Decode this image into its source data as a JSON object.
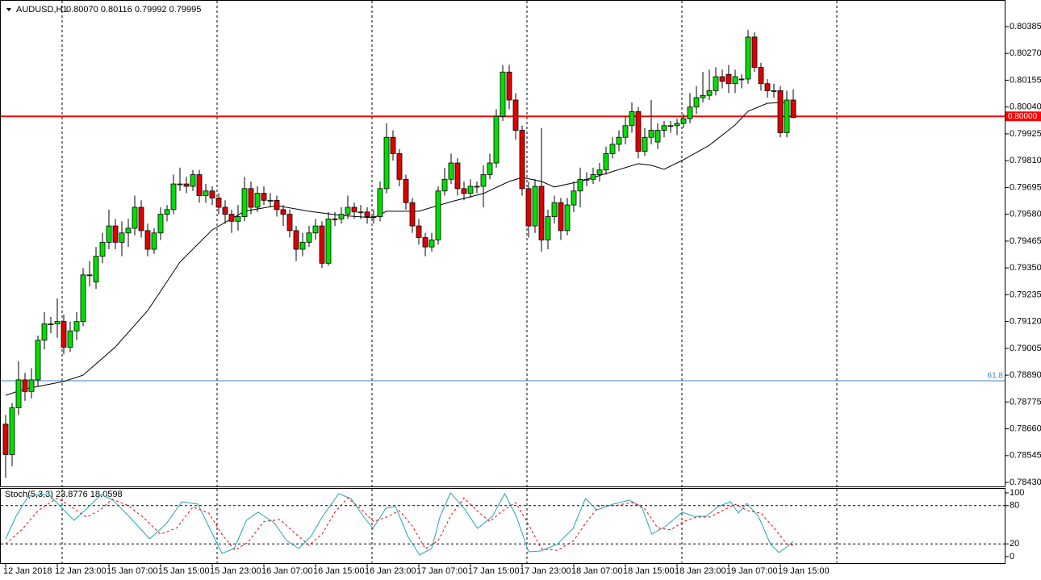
{
  "chart_data": [
    {
      "type": "candlestick",
      "title": "AUDUSD,H1",
      "subtitle": "0.80070 0.80116 0.79992 0.79995",
      "up_color": "#00e000",
      "down_color": "#e00000",
      "candles": [
        [
          0.7868,
          0.7872,
          0.7845,
          0.7855
        ],
        [
          0.7855,
          0.7877,
          0.785,
          0.7875
        ],
        [
          0.7875,
          0.7895,
          0.7872,
          0.7887
        ],
        [
          0.7887,
          0.789,
          0.7878,
          0.7882
        ],
        [
          0.7882,
          0.7892,
          0.7879,
          0.7887
        ],
        [
          0.7887,
          0.7906,
          0.7884,
          0.7904
        ],
        [
          0.7904,
          0.7916,
          0.79,
          0.7911
        ],
        [
          0.7911,
          0.7914,
          0.7907,
          0.7911
        ],
        [
          0.7911,
          0.7922,
          0.7905,
          0.7912
        ],
        [
          0.7912,
          0.7915,
          0.7898,
          0.7901
        ],
        [
          0.7901,
          0.7912,
          0.7899,
          0.7908
        ],
        [
          0.7908,
          0.7916,
          0.7904,
          0.7912
        ],
        [
          0.7912,
          0.7935,
          0.791,
          0.7932
        ],
        [
          0.7932,
          0.7938,
          0.7927,
          0.7932
        ],
        [
          0.7929,
          0.7944,
          0.7926,
          0.794
        ],
        [
          0.794,
          0.795,
          0.7937,
          0.7946
        ],
        [
          0.7946,
          0.796,
          0.7943,
          0.7953
        ],
        [
          0.7953,
          0.7956,
          0.7943,
          0.7946
        ],
        [
          0.7946,
          0.7955,
          0.794,
          0.795
        ],
        [
          0.795,
          0.7956,
          0.7944,
          0.7952
        ],
        [
          0.7952,
          0.7966,
          0.7949,
          0.7961
        ],
        [
          0.7961,
          0.7964,
          0.7948,
          0.7951
        ],
        [
          0.7951,
          0.7954,
          0.794,
          0.7943
        ],
        [
          0.7943,
          0.7952,
          0.7941,
          0.795
        ],
        [
          0.795,
          0.7961,
          0.7947,
          0.7958
        ],
        [
          0.7958,
          0.7962,
          0.7955,
          0.796
        ],
        [
          0.796,
          0.7975,
          0.7958,
          0.7971
        ],
        [
          0.7971,
          0.7978,
          0.7968,
          0.7971
        ],
        [
          0.7971,
          0.7974,
          0.7967,
          0.797
        ],
        [
          0.797,
          0.7977,
          0.7968,
          0.7975
        ],
        [
          0.7975,
          0.7977,
          0.7963,
          0.7966
        ],
        [
          0.7966,
          0.7971,
          0.7963,
          0.7968
        ],
        [
          0.7968,
          0.797,
          0.7962,
          0.7965
        ],
        [
          0.7965,
          0.7967,
          0.7958,
          0.7961
        ],
        [
          0.7961,
          0.7964,
          0.7954,
          0.7958
        ],
        [
          0.7958,
          0.796,
          0.795,
          0.7955
        ],
        [
          0.7955,
          0.7962,
          0.7951,
          0.7957
        ],
        [
          0.7957,
          0.7974,
          0.7955,
          0.7969
        ],
        [
          0.7969,
          0.7972,
          0.7958,
          0.7961
        ],
        [
          0.7961,
          0.797,
          0.7959,
          0.7967
        ],
        [
          0.7967,
          0.797,
          0.7962,
          0.7964
        ],
        [
          0.7964,
          0.7967,
          0.7961,
          0.7964
        ],
        [
          0.7964,
          0.7966,
          0.7957,
          0.796
        ],
        [
          0.796,
          0.7962,
          0.7953,
          0.7958
        ],
        [
          0.7958,
          0.796,
          0.7948,
          0.7951
        ],
        [
          0.7951,
          0.7953,
          0.7938,
          0.7943
        ],
        [
          0.7943,
          0.795,
          0.794,
          0.7946
        ],
        [
          0.7946,
          0.7953,
          0.7944,
          0.795
        ],
        [
          0.795,
          0.7956,
          0.7947,
          0.7953
        ],
        [
          0.7953,
          0.7955,
          0.7935,
          0.7937
        ],
        [
          0.7937,
          0.7959,
          0.7936,
          0.7956
        ],
        [
          0.7956,
          0.7959,
          0.7953,
          0.7956
        ],
        [
          0.7956,
          0.7961,
          0.7954,
          0.7958
        ],
        [
          0.7958,
          0.7966,
          0.7956,
          0.7961
        ],
        [
          0.7961,
          0.7963,
          0.7956,
          0.7959
        ],
        [
          0.7959,
          0.7962,
          0.7956,
          0.7959
        ],
        [
          0.7959,
          0.7961,
          0.7954,
          0.7957
        ],
        [
          0.7957,
          0.796,
          0.7954,
          0.7957
        ],
        [
          0.7957,
          0.7972,
          0.7955,
          0.7969
        ],
        [
          0.7969,
          0.7997,
          0.7967,
          0.7991
        ],
        [
          0.7991,
          0.7994,
          0.7981,
          0.7984
        ],
        [
          0.7984,
          0.7986,
          0.797,
          0.7973
        ],
        [
          0.7973,
          0.7975,
          0.796,
          0.7963
        ],
        [
          0.7963,
          0.7965,
          0.795,
          0.7953
        ],
        [
          0.7953,
          0.7956,
          0.7945,
          0.7948
        ],
        [
          0.7948,
          0.795,
          0.794,
          0.7944
        ],
        [
          0.7944,
          0.795,
          0.7942,
          0.7947
        ],
        [
          0.7947,
          0.797,
          0.7945,
          0.7968
        ],
        [
          0.7968,
          0.7978,
          0.7966,
          0.7973
        ],
        [
          0.7973,
          0.7984,
          0.7971,
          0.798
        ],
        [
          0.798,
          0.7982,
          0.7966,
          0.7969
        ],
        [
          0.7969,
          0.7972,
          0.7964,
          0.7967
        ],
        [
          0.7967,
          0.7973,
          0.7965,
          0.797
        ],
        [
          0.797,
          0.7972,
          0.7967,
          0.797
        ],
        [
          0.797,
          0.7979,
          0.7961,
          0.7975
        ],
        [
          0.7975,
          0.7984,
          0.7973,
          0.798
        ],
        [
          0.798,
          0.8003,
          0.7978,
          0.8
        ],
        [
          0.8,
          0.8022,
          0.7998,
          0.8019
        ],
        [
          0.8019,
          0.8022,
          0.8003,
          0.8007
        ],
        [
          0.8007,
          0.801,
          0.799,
          0.7994
        ],
        [
          0.7994,
          0.7996,
          0.7966,
          0.7969
        ],
        [
          0.7969,
          0.7972,
          0.7948,
          0.7953
        ],
        [
          0.7953,
          0.7973,
          0.795,
          0.797
        ],
        [
          0.797,
          0.7995,
          0.7942,
          0.7947
        ],
        [
          0.7947,
          0.796,
          0.7943,
          0.7957
        ],
        [
          0.7957,
          0.7966,
          0.7954,
          0.7963
        ],
        [
          0.7963,
          0.7965,
          0.7947,
          0.7951
        ],
        [
          0.7951,
          0.7965,
          0.7949,
          0.7962
        ],
        [
          0.7962,
          0.7972,
          0.7959,
          0.7968
        ],
        [
          0.7968,
          0.7978,
          0.7961,
          0.7973
        ],
        [
          0.7973,
          0.7976,
          0.797,
          0.7973
        ],
        [
          0.7973,
          0.7978,
          0.7971,
          0.7975
        ],
        [
          0.7975,
          0.798,
          0.7972,
          0.7977
        ],
        [
          0.7977,
          0.7987,
          0.7975,
          0.7984
        ],
        [
          0.7984,
          0.7991,
          0.7982,
          0.7988
        ],
        [
          0.7988,
          0.7994,
          0.7985,
          0.7991
        ],
        [
          0.7991,
          0.8,
          0.7988,
          0.7996
        ],
        [
          0.7996,
          0.8006,
          0.7993,
          0.8002
        ],
        [
          0.8002,
          0.8004,
          0.7982,
          0.7985
        ],
        [
          0.7985,
          0.7995,
          0.7983,
          0.7991
        ],
        [
          0.7991,
          0.8007,
          0.7988,
          0.7994
        ],
        [
          0.7989,
          0.7997,
          0.7986,
          0.7994
        ],
        [
          0.7994,
          0.7998,
          0.7991,
          0.7996
        ],
        [
          0.7996,
          0.7998,
          0.7993,
          0.7996
        ],
        [
          0.7996,
          0.7999,
          0.7992,
          0.7997
        ],
        [
          0.7997,
          0.8001,
          0.7995,
          0.7999
        ],
        [
          0.7999,
          0.801,
          0.7997,
          0.8004
        ],
        [
          0.8004,
          0.8013,
          0.8001,
          0.8008
        ],
        [
          0.8008,
          0.8019,
          0.8006,
          0.8009
        ],
        [
          0.8009,
          0.802,
          0.8007,
          0.8011
        ],
        [
          0.8011,
          0.8021,
          0.8009,
          0.8017
        ],
        [
          0.8017,
          0.802,
          0.8012,
          0.8015
        ],
        [
          0.8018,
          0.8022,
          0.801,
          0.8014
        ],
        [
          0.8014,
          0.802,
          0.801,
          0.8017
        ],
        [
          0.8016,
          0.8018,
          0.8012,
          0.8016
        ],
        [
          0.8016,
          0.8037,
          0.8014,
          0.8034
        ],
        [
          0.8034,
          0.8036,
          0.8019,
          0.8021
        ],
        [
          0.8021,
          0.8023,
          0.8011,
          0.8014
        ],
        [
          0.8014,
          0.8016,
          0.8008,
          0.8011
        ],
        [
          0.8011,
          0.8014,
          0.8008,
          0.8011
        ],
        [
          0.8011,
          0.8013,
          0.7991,
          0.7993
        ],
        [
          0.7993,
          0.8011,
          0.7991,
          0.8007
        ],
        [
          0.8007,
          0.80116,
          0.79992,
          0.79995
        ]
      ],
      "overlay": {
        "color": "#000000",
        "x": [
          0,
          3,
          9,
          12,
          17,
          22,
          27,
          32,
          37,
          42,
          47,
          52,
          57,
          59,
          64,
          69,
          74,
          78,
          80,
          83,
          85,
          89,
          93,
          98,
          100,
          102,
          105,
          109,
          113,
          115,
          118,
          121
        ],
        "values": [
          0.78804,
          0.78831,
          0.78863,
          0.7889,
          0.79011,
          0.79167,
          0.79375,
          0.79513,
          0.79593,
          0.79617,
          0.79593,
          0.79575,
          0.79565,
          0.79593,
          0.79593,
          0.79634,
          0.79669,
          0.79721,
          0.79738,
          0.79721,
          0.79697,
          0.79721,
          0.79755,
          0.79797,
          0.7979,
          0.79773,
          0.79814,
          0.79876,
          0.79963,
          0.80022,
          0.80056,
          0.8006
        ]
      },
      "hlines": [
        {
          "value": 0.8,
          "label": "0.80000",
          "color": "#ff0000",
          "width": 2
        },
        {
          "value": 0.78866,
          "label": "61.8",
          "color": "#4682b4",
          "width": 1
        }
      ],
      "ylim": [
        0.78413,
        0.80492
      ],
      "yticks": [
        0.80385,
        {
          "value": 0.8027,
          "label": "0.80270"
        },
        0.80155,
        {
          "value": 0.8004,
          "label": "0.80040"
        },
        0.79925,
        {
          "value": 0.7981,
          "label": "0.79810"
        },
        0.79695,
        {
          "value": 0.7958,
          "label": "0.79580"
        },
        0.79465,
        {
          "value": 0.7935,
          "label": "0.79350"
        },
        0.79235,
        {
          "value": 0.7912,
          "label": "0.79120"
        },
        0.79005,
        {
          "value": 0.7889,
          "label": "0.78890"
        },
        0.78775,
        {
          "value": 0.7866,
          "label": "0.78660"
        },
        0.78545,
        {
          "value": 0.7843,
          "label": "0.78430"
        }
      ],
      "xticks": [
        {
          "value": 0,
          "label": "12 Jan 2018"
        },
        {
          "value": 8,
          "label": "12 Jan 23:00"
        },
        {
          "value": 16,
          "label": "15 Jan 07:00"
        },
        {
          "value": 24,
          "label": "15 Jan 15:00"
        },
        {
          "value": 32,
          "label": "15 Jan 23:00"
        },
        {
          "value": 40,
          "label": "16 Jan 07:00"
        },
        {
          "value": 48,
          "label": "16 Jan 15:00"
        },
        {
          "value": 56,
          "label": "16 Jan 23:00"
        },
        {
          "value": 64,
          "label": "17 Jan 07:00"
        },
        {
          "value": 72,
          "label": "17 Jan 15:00"
        },
        {
          "value": 80,
          "label": "17 Jan 23:00"
        },
        {
          "value": 88,
          "label": "18 Jan 07:00"
        },
        {
          "value": 96,
          "label": "18 Jan 15:00"
        },
        {
          "value": 104,
          "label": "18 Jan 23:00"
        },
        {
          "value": 112,
          "label": "19 Jan 07:00"
        },
        {
          "value": 120,
          "label": "19 Jan 15:00"
        }
      ]
    },
    {
      "type": "line",
      "title": "Stoch(5,3,3) 23.8776 18.0598",
      "ylim": [
        -11.4,
        107.6
      ],
      "yticks": [
        100,
        80,
        20,
        0
      ],
      "grid_lines": [
        80,
        20
      ],
      "series": [
        {
          "color": "#20a8b8",
          "dashed": false,
          "x": [
            0,
            1.6,
            3.5,
            6.6,
            8.5,
            10.6,
            12.9,
            14.8,
            16.6,
            19.1,
            22.3,
            24.8,
            27.3,
            29.8,
            31.6,
            33.5,
            35.4,
            37.3,
            39.1,
            41.6,
            43.5,
            45.4,
            47.3,
            49.1,
            51.6,
            53.5,
            55.4,
            56.9,
            58.9,
            60.4,
            62.3,
            64.1,
            66,
            67.3,
            68.9,
            71,
            73.1,
            75.4,
            77.3,
            79.1,
            81,
            82.9,
            85.4,
            87.9,
            89.8,
            91.6,
            94.1,
            96.6,
            98.5,
            100.1,
            102.3,
            104.8,
            106.6,
            108.5,
            110.4,
            112.3,
            113.5,
            114.8,
            116.6,
            118.5,
            119.8,
            121,
            122
          ],
          "values": [
            27.8,
            63.3,
            94.9,
            98.7,
            78.5,
            57.0,
            78.5,
            97.5,
            88.6,
            63.3,
            27.8,
            50.6,
            86.1,
            82.3,
            44.3,
            5.1,
            12.7,
            57.0,
            69.6,
            53.2,
            25.3,
            12.7,
            31.6,
            63.3,
            98.7,
            91.1,
            63.3,
            44.3,
            75.9,
            78.5,
            31.6,
            2.5,
            12.7,
            63.3,
            100,
            75.9,
            44.3,
            63.3,
            98.7,
            63.3,
            7.6,
            8.9,
            19.0,
            44.3,
            91.1,
            73.4,
            82.3,
            88.6,
            78.5,
            35.4,
            48.1,
            69.6,
            63.3,
            63.3,
            78.5,
            86.1,
            68.4,
            83.5,
            63.3,
            19.0,
            6.3,
            15.2,
            23.9
          ]
        },
        {
          "color": "#ff0000",
          "dashed": true,
          "x": [
            0,
            2.5,
            5,
            8,
            10.5,
            12.5,
            14.5,
            16.5,
            19,
            21.5,
            24,
            26.5,
            29,
            31.5,
            33.5,
            35.5,
            37.5,
            40,
            42.5,
            45,
            47,
            49,
            51,
            53,
            55,
            57,
            59,
            61,
            63,
            65,
            67,
            69,
            71,
            73,
            75,
            77,
            79,
            81,
            83,
            85.5,
            88,
            90,
            92,
            94.5,
            97,
            99,
            101,
            103,
            105,
            107,
            109,
            111,
            113,
            115,
            117,
            119,
            121,
            122
          ],
          "values": [
            20,
            42,
            72,
            92,
            76,
            62,
            72,
            90,
            80,
            60,
            35,
            45,
            78,
            68,
            35,
            10,
            22,
            55,
            58,
            35,
            18,
            35,
            70,
            92,
            75,
            55,
            62,
            72,
            48,
            12,
            25,
            65,
            92,
            72,
            55,
            72,
            85,
            50,
            12,
            10,
            25,
            55,
            80,
            80,
            85,
            75,
            45,
            42,
            55,
            62,
            62,
            72,
            82,
            72,
            68,
            45,
            20,
            18.1
          ]
        }
      ]
    }
  ]
}
